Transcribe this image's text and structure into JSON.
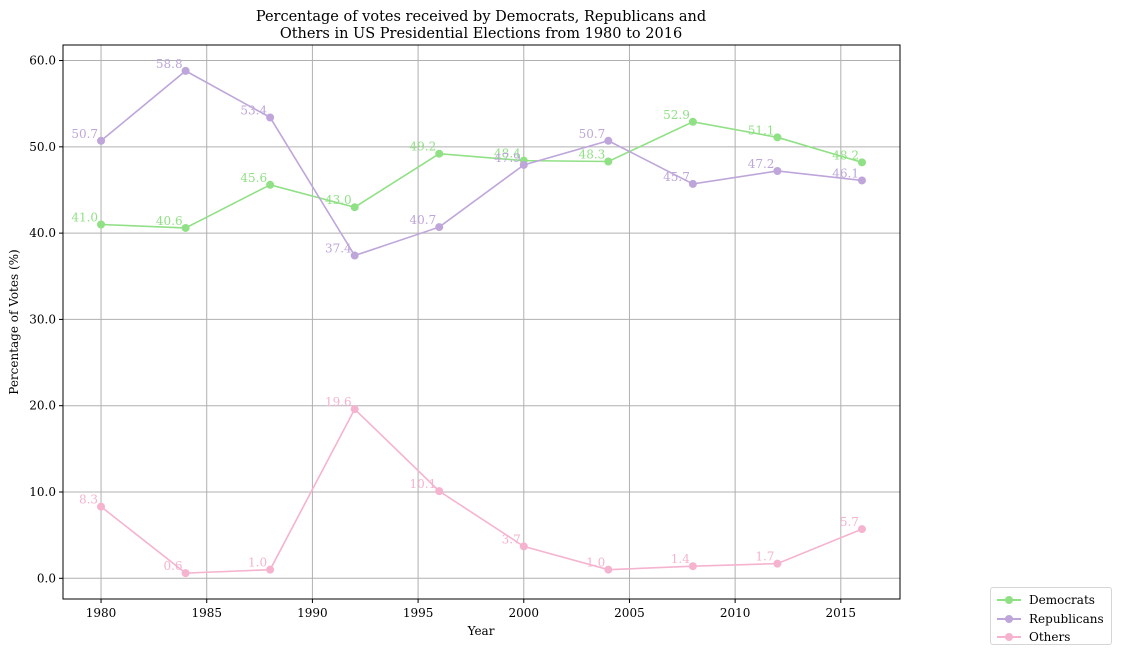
{
  "chart_data": {
    "type": "line",
    "title": "Percentage of votes received by Democrats, Republicans and Others in US Presidential Elections from 1980 to 2016",
    "title_lines": [
      "Percentage of votes received by Democrats, Republicans and",
      "Others in US Presidential Elections from 1980 to 2016"
    ],
    "xlabel": "Year",
    "ylabel": "Percentage of Votes (%)",
    "x": [
      1980,
      1984,
      1988,
      1992,
      1996,
      2000,
      2004,
      2008,
      2012,
      2016
    ],
    "xlim": [
      1978.2,
      2017.8
    ],
    "ylim": [
      -2.4,
      61.8
    ],
    "xticks": [
      1980,
      1985,
      1990,
      1995,
      2000,
      2005,
      2010,
      2015
    ],
    "yticks": [
      0.0,
      10.0,
      20.0,
      30.0,
      40.0,
      50.0,
      60.0
    ],
    "ytick_labels": [
      "0.0",
      "10.0",
      "20.0",
      "30.0",
      "40.0",
      "50.0",
      "60.0"
    ],
    "grid": true,
    "legend_position": "bottom-right outside",
    "series": [
      {
        "name": "Democrats",
        "color": "#90e085",
        "values": [
          41.0,
          40.6,
          45.6,
          43.0,
          49.2,
          48.4,
          48.3,
          52.9,
          51.1,
          48.2
        ],
        "labels": [
          "41.0",
          "40.6",
          "45.6",
          "43.0",
          "49.2",
          "48.4",
          "48.3",
          "52.9",
          "51.1",
          "48.2"
        ]
      },
      {
        "name": "Republicans",
        "color": "#bea6da",
        "values": [
          50.7,
          58.8,
          53.4,
          37.4,
          40.7,
          47.9,
          50.7,
          45.7,
          47.2,
          46.1
        ],
        "labels": [
          "50.7",
          "58.8",
          "53.4",
          "37.4",
          "40.7",
          "47.9",
          "50.7",
          "45.7",
          "47.2",
          "46.1"
        ]
      },
      {
        "name": "Others",
        "color": "#f5b3cf",
        "values": [
          8.3,
          0.6,
          1.0,
          19.6,
          10.1,
          3.7,
          1.0,
          1.4,
          1.7,
          5.7
        ],
        "labels": [
          "8.3",
          "0.6",
          "1.0",
          "19.6",
          "10.1",
          "3.7",
          "1.0",
          "1.4",
          "1.7",
          "5.7"
        ]
      }
    ]
  }
}
